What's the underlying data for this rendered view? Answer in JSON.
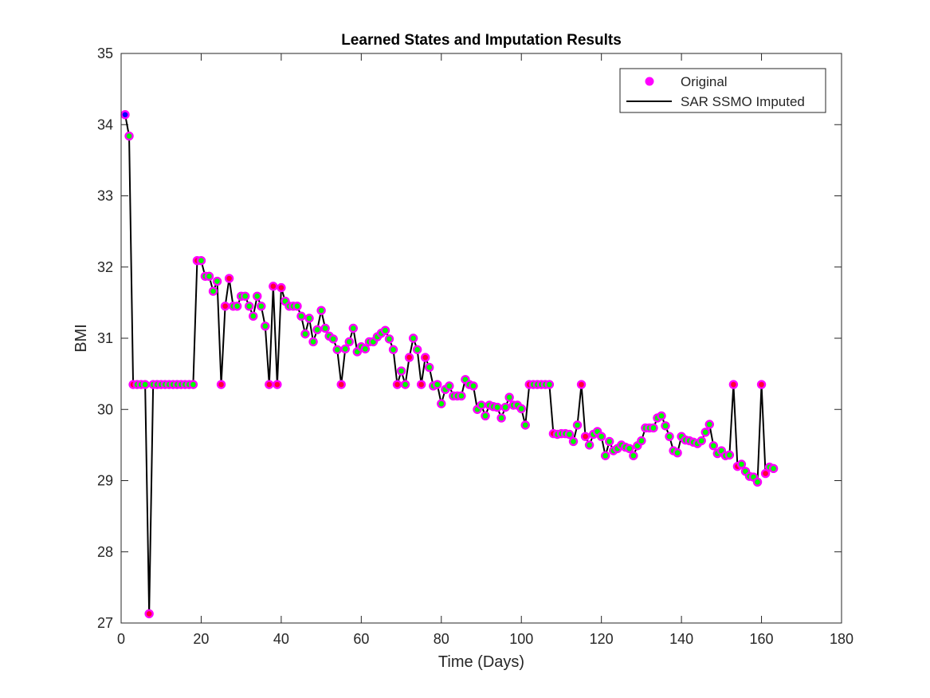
{
  "chart_data": {
    "type": "scatter",
    "title": "Learned States and Imputation Results",
    "xlabel": "Time (Days)",
    "ylabel": "BMI",
    "xlim": [
      0,
      180
    ],
    "ylim": [
      27,
      35
    ],
    "xticks": [
      0,
      20,
      40,
      60,
      80,
      100,
      120,
      140,
      160,
      180
    ],
    "yticks": [
      27,
      28,
      29,
      30,
      31,
      32,
      33,
      34,
      35
    ],
    "grid": false,
    "legend": {
      "placement": "top-right",
      "entries": [
        {
          "label": "Original",
          "marker": "circle",
          "color": "#ff00ff"
        },
        {
          "label": "SAR SSMO Imputed",
          "marker": "line",
          "color": "#000000"
        }
      ]
    },
    "colors": {
      "original_edge": "#ff00ff",
      "line": "#000000",
      "state_1": "#0000ff",
      "state_2": "#ff0033",
      "state_3": "#00ff00"
    },
    "x": [
      1,
      2,
      3,
      4,
      5,
      6,
      7,
      8,
      9,
      10,
      11,
      12,
      13,
      14,
      15,
      16,
      17,
      18,
      19,
      20,
      21,
      22,
      23,
      24,
      25,
      26,
      27,
      28,
      29,
      30,
      31,
      32,
      33,
      34,
      35,
      36,
      37,
      38,
      39,
      40,
      41,
      42,
      43,
      44,
      45,
      46,
      47,
      48,
      49,
      50,
      51,
      52,
      53,
      54,
      55,
      56,
      57,
      58,
      59,
      60,
      61,
      62,
      63,
      64,
      65,
      66,
      67,
      68,
      69,
      70,
      71,
      72,
      73,
      74,
      75,
      76,
      77,
      78,
      79,
      80,
      81,
      82,
      83,
      84,
      85,
      86,
      87,
      88,
      89,
      90,
      91,
      92,
      93,
      94,
      95,
      96,
      97,
      98,
      99,
      100,
      101,
      102,
      103,
      104,
      105,
      106,
      107,
      108,
      109,
      110,
      111,
      112,
      113,
      114,
      115,
      116,
      117,
      118,
      119,
      120,
      121,
      122,
      123,
      124,
      125,
      126,
      127,
      128,
      129,
      130,
      131,
      132,
      133,
      134,
      135,
      136,
      137,
      138,
      139,
      140,
      141,
      142,
      143,
      144,
      145,
      146,
      147,
      148,
      149,
      150,
      151,
      152,
      153,
      154,
      155,
      156,
      157,
      158,
      159,
      160,
      161,
      162,
      163
    ],
    "y": [
      34.14,
      33.84,
      30.35,
      30.35,
      30.35,
      30.35,
      27.13,
      30.35,
      30.35,
      30.35,
      30.35,
      30.35,
      30.35,
      30.35,
      30.35,
      30.35,
      30.35,
      30.35,
      32.09,
      32.09,
      31.87,
      31.87,
      31.66,
      31.8,
      30.35,
      31.45,
      31.84,
      31.45,
      31.45,
      31.59,
      31.59,
      31.45,
      31.31,
      31.59,
      31.45,
      31.17,
      30.35,
      31.73,
      30.35,
      31.71,
      31.52,
      31.45,
      31.45,
      31.45,
      31.31,
      31.06,
      31.28,
      30.95,
      31.12,
      31.39,
      31.14,
      31.03,
      30.99,
      30.84,
      30.35,
      30.85,
      30.95,
      31.14,
      30.81,
      30.88,
      30.85,
      30.95,
      30.95,
      31.02,
      31.07,
      31.11,
      30.99,
      30.84,
      30.35,
      30.54,
      30.35,
      30.73,
      31.0,
      30.84,
      30.35,
      30.73,
      30.59,
      30.33,
      30.35,
      30.08,
      30.28,
      30.33,
      30.19,
      30.19,
      30.19,
      30.42,
      30.35,
      30.33,
      30.0,
      30.06,
      29.91,
      30.06,
      30.04,
      30.03,
      29.88,
      30.03,
      30.17,
      30.06,
      30.06,
      30.01,
      29.78,
      30.35,
      30.35,
      30.35,
      30.35,
      30.35,
      30.35,
      29.66,
      29.65,
      29.66,
      29.66,
      29.65,
      29.55,
      29.78,
      30.35,
      29.62,
      29.5,
      29.65,
      29.69,
      29.62,
      29.35,
      29.55,
      29.42,
      29.45,
      29.5,
      29.47,
      29.45,
      29.35,
      29.49,
      29.56,
      29.74,
      29.74,
      29.74,
      29.88,
      29.91,
      29.77,
      29.62,
      29.42,
      29.39,
      29.62,
      29.57,
      29.56,
      29.54,
      29.52,
      29.56,
      29.68,
      29.79,
      29.49,
      29.38,
      29.42,
      29.35,
      29.36,
      30.35,
      29.2,
      29.23,
      29.13,
      29.06,
      29.05,
      28.98,
      30.35,
      29.1,
      29.19,
      29.17
    ],
    "state": [
      1,
      3,
      2,
      3,
      3,
      3,
      2,
      3,
      3,
      3,
      3,
      3,
      3,
      3,
      3,
      3,
      3,
      3,
      2,
      3,
      3,
      3,
      3,
      3,
      2,
      2,
      2,
      3,
      3,
      3,
      3,
      3,
      3,
      3,
      3,
      3,
      2,
      2,
      2,
      2,
      3,
      3,
      3,
      3,
      3,
      3,
      3,
      3,
      3,
      3,
      3,
      3,
      3,
      3,
      2,
      3,
      3,
      3,
      3,
      3,
      3,
      3,
      3,
      3,
      3,
      3,
      3,
      3,
      2,
      3,
      3,
      2,
      3,
      3,
      2,
      2,
      3,
      3,
      3,
      3,
      3,
      3,
      3,
      3,
      3,
      3,
      3,
      3,
      3,
      3,
      3,
      3,
      3,
      3,
      3,
      3,
      3,
      3,
      3,
      3,
      3,
      2,
      3,
      3,
      3,
      3,
      3,
      2,
      3,
      3,
      3,
      3,
      3,
      3,
      2,
      2,
      3,
      3,
      3,
      3,
      3,
      3,
      3,
      3,
      3,
      3,
      3,
      3,
      3,
      3,
      3,
      3,
      3,
      3,
      3,
      3,
      3,
      3,
      3,
      3,
      3,
      3,
      3,
      3,
      3,
      3,
      3,
      3,
      3,
      3,
      3,
      3,
      2,
      2,
      3,
      3,
      3,
      3,
      3,
      2,
      2,
      3,
      3
    ]
  }
}
